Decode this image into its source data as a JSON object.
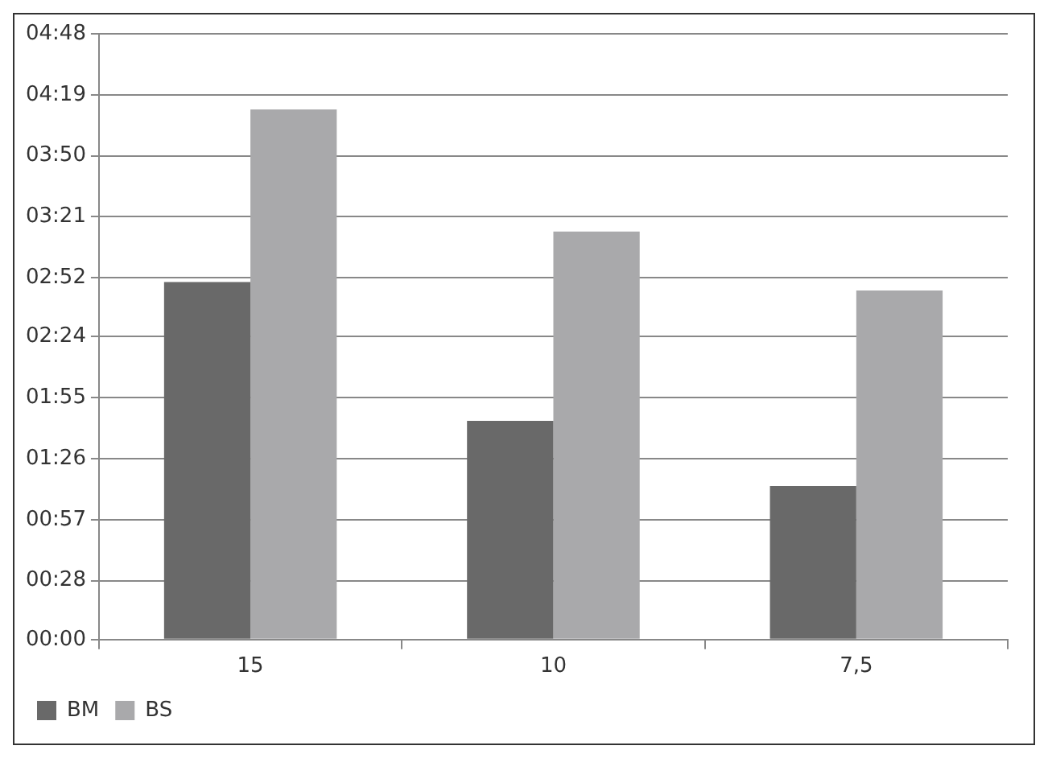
{
  "chart_data": {
    "type": "bar",
    "categories": [
      "15",
      "10",
      "7,5"
    ],
    "series": [
      {
        "name": "BM",
        "color": "#696969",
        "values": [
          170,
          104,
          73
        ]
      },
      {
        "name": "BS",
        "color": "#a9a9ab",
        "values": [
          252,
          194,
          166
        ]
      }
    ],
    "ylim": [
      0,
      288
    ],
    "yticks": [
      {
        "value": 0,
        "label": "00:00"
      },
      {
        "value": 28,
        "label": "00:28"
      },
      {
        "value": 57,
        "label": "00:57"
      },
      {
        "value": 86,
        "label": "01:26"
      },
      {
        "value": 115,
        "label": "01:55"
      },
      {
        "value": 144,
        "label": "02:24"
      },
      {
        "value": 172,
        "label": "02:52"
      },
      {
        "value": 201,
        "label": "03:21"
      },
      {
        "value": 230,
        "label": "03:50"
      },
      {
        "value": 259,
        "label": "04:19"
      },
      {
        "value": 288,
        "label": "04:48"
      }
    ],
    "grid": "y",
    "legend": "bottom left"
  }
}
